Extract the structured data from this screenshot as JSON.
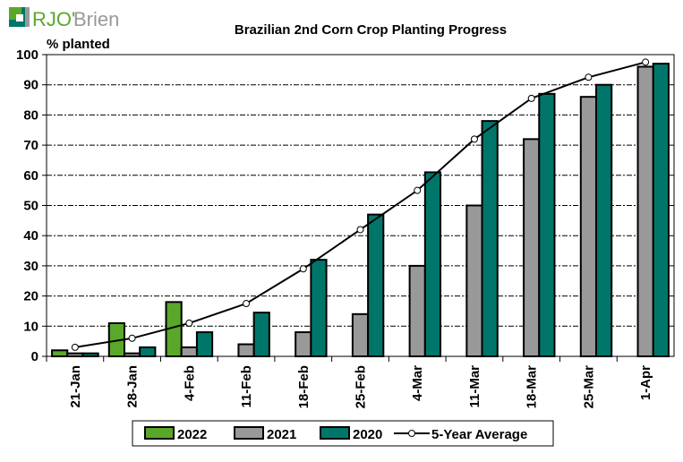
{
  "logo": {
    "text": "RJO'Brien",
    "colors": {
      "green": "#5aa829",
      "gray": "#999999",
      "teal": "#00766a"
    }
  },
  "chart_data": {
    "type": "bar",
    "title": "Brazilian 2nd Corn Crop Planting Progress",
    "ylabel": "% planted",
    "ylim": [
      0,
      100
    ],
    "yticks": [
      0,
      10,
      20,
      30,
      40,
      50,
      60,
      70,
      80,
      90,
      100
    ],
    "grid": true,
    "legend_position": "bottom",
    "categories": [
      "21-Jan",
      "28-Jan",
      "4-Feb",
      "11-Feb",
      "18-Feb",
      "25-Feb",
      "4-Mar",
      "11-Mar",
      "18-Mar",
      "25-Mar",
      "1-Apr"
    ],
    "series": [
      {
        "name": "2022",
        "type": "bar",
        "color": "#5aa829",
        "values": [
          2,
          11,
          18,
          null,
          null,
          null,
          null,
          null,
          null,
          null,
          null
        ]
      },
      {
        "name": "2021",
        "type": "bar",
        "color": "#999999",
        "values": [
          1,
          1,
          3,
          4,
          8,
          14,
          30,
          50,
          72,
          86,
          96
        ]
      },
      {
        "name": "2020",
        "type": "bar",
        "color": "#00766a",
        "values": [
          1,
          3,
          8,
          14.5,
          32,
          47,
          61,
          78,
          87,
          90,
          97
        ]
      },
      {
        "name": "5-Year Average",
        "type": "line",
        "color": "#000000",
        "values": [
          3,
          6,
          11,
          17.5,
          29,
          42,
          55,
          72,
          85.5,
          92.5,
          97.5
        ]
      }
    ]
  }
}
